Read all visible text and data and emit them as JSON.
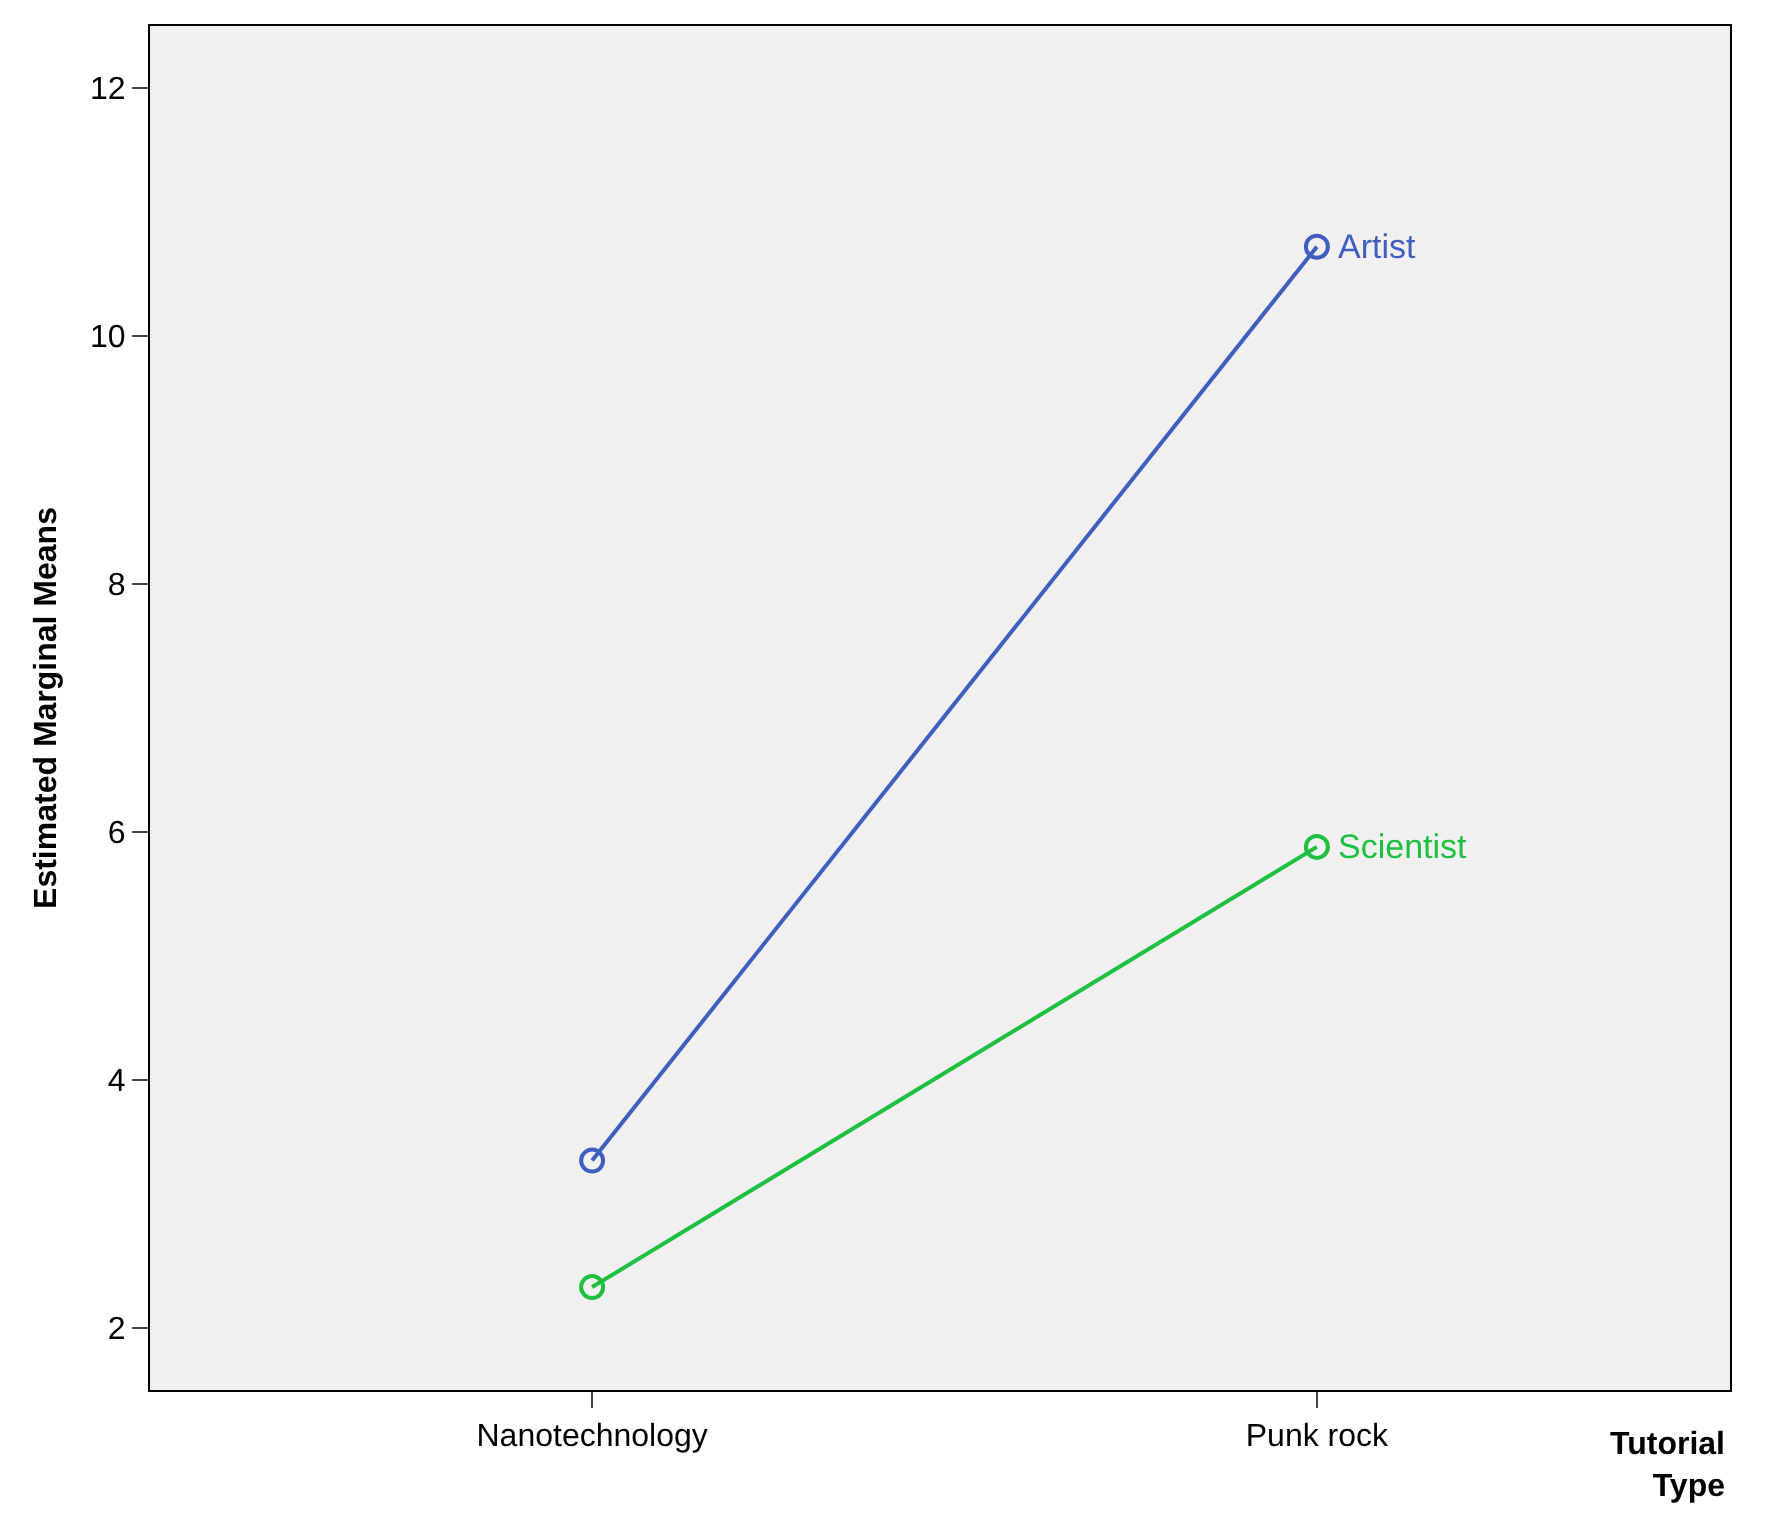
{
  "chart_data": {
    "type": "line",
    "xlabel": "Tutorial Type",
    "ylabel": "Estimated Marginal Means",
    "categories": [
      "Nanotechnology",
      "Punk rock"
    ],
    "series": [
      {
        "name": "Artist",
        "color": "#3f5fbf",
        "values": [
          3.35,
          10.72
        ]
      },
      {
        "name": "Scientist",
        "color": "#1fbf3f",
        "values": [
          2.33,
          5.88
        ]
      }
    ],
    "ylim": [
      1.5,
      12.5
    ],
    "yticks": [
      2,
      4,
      6,
      8,
      10,
      12
    ],
    "grid": false,
    "legend": false,
    "marker": "circle",
    "line_style": "solid"
  }
}
